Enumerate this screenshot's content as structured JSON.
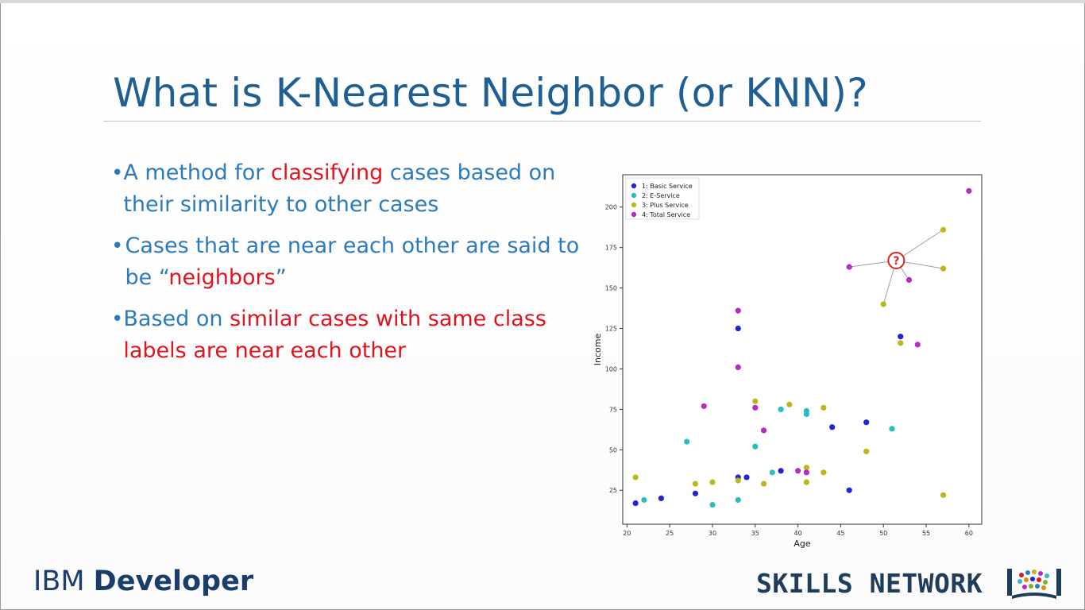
{
  "slide": {
    "title": "What is K-Nearest Neighbor (or KNN)?",
    "bullets": [
      {
        "parts": [
          {
            "text": "A method for ",
            "highlight": false
          },
          {
            "text": "classifying",
            "highlight": true
          },
          {
            "text": " cases based on their similarity to other cases",
            "highlight": false
          }
        ]
      },
      {
        "parts": [
          {
            "text": "Cases that are near each other are said to be “",
            "highlight": false
          },
          {
            "text": "neighbors",
            "highlight": true
          },
          {
            "text": "”",
            "highlight": false
          }
        ]
      },
      {
        "parts": [
          {
            "text": "Based on ",
            "highlight": false
          },
          {
            "text": "similar cases with same class labels are near each other",
            "highlight": true
          }
        ]
      }
    ]
  },
  "footer": {
    "brand_prefix": "IBM ",
    "brand_name": "Developer",
    "network_label": "SKILLS NETWORK"
  },
  "colors": {
    "title": "#1f5f94",
    "text": "#2b7bbd",
    "highlight": "#e0141e"
  },
  "chart_data": {
    "type": "scatter",
    "xlabel": "Age",
    "ylabel": "Income",
    "xlim": [
      19.5,
      61.5
    ],
    "ylim": [
      4,
      220
    ],
    "xticks": [
      20,
      25,
      30,
      35,
      40,
      45,
      50,
      55,
      60
    ],
    "yticks": [
      25,
      50,
      75,
      100,
      125,
      150,
      175,
      200
    ],
    "legend_position": "top-left",
    "series": [
      {
        "name": "1: Basic Service",
        "color": "#2424d0",
        "points": [
          [
            21,
            17
          ],
          [
            24,
            20
          ],
          [
            28,
            23
          ],
          [
            33,
            125
          ],
          [
            33,
            33
          ],
          [
            34,
            33
          ],
          [
            38,
            37
          ],
          [
            44,
            64
          ],
          [
            46,
            25
          ],
          [
            48,
            67
          ],
          [
            52,
            120
          ]
        ]
      },
      {
        "name": "2: E-Service",
        "color": "#2bbdbd",
        "points": [
          [
            22,
            19
          ],
          [
            27,
            55
          ],
          [
            30,
            16
          ],
          [
            33,
            19
          ],
          [
            35,
            52
          ],
          [
            37,
            36
          ],
          [
            38,
            75
          ],
          [
            41,
            74
          ],
          [
            41,
            72
          ],
          [
            51,
            63
          ]
        ]
      },
      {
        "name": "3: Plus Service",
        "color": "#b9b918",
        "points": [
          [
            21,
            33
          ],
          [
            28,
            29
          ],
          [
            30,
            30
          ],
          [
            33,
            31
          ],
          [
            35,
            80
          ],
          [
            36,
            29
          ],
          [
            39,
            78
          ],
          [
            41,
            39
          ],
          [
            41,
            30
          ],
          [
            43,
            76
          ],
          [
            43,
            36
          ],
          [
            48,
            49
          ],
          [
            50,
            140
          ],
          [
            52,
            116
          ],
          [
            57,
            186
          ],
          [
            57,
            162
          ],
          [
            57,
            22
          ]
        ]
      },
      {
        "name": "4: Total Service",
        "color": "#b52cc0",
        "points": [
          [
            29,
            77
          ],
          [
            33,
            136
          ],
          [
            33,
            101
          ],
          [
            35,
            76
          ],
          [
            36,
            62
          ],
          [
            40,
            37
          ],
          [
            41,
            36
          ],
          [
            46,
            163
          ],
          [
            53,
            155
          ],
          [
            54,
            115
          ],
          [
            60,
            210
          ]
        ]
      }
    ],
    "query_point": {
      "label": "?",
      "x": 51.5,
      "y": 167
    },
    "query_links": [
      [
        46,
        163
      ],
      [
        57,
        186
      ],
      [
        57,
        162
      ],
      [
        53,
        155
      ],
      [
        50,
        140
      ]
    ]
  }
}
